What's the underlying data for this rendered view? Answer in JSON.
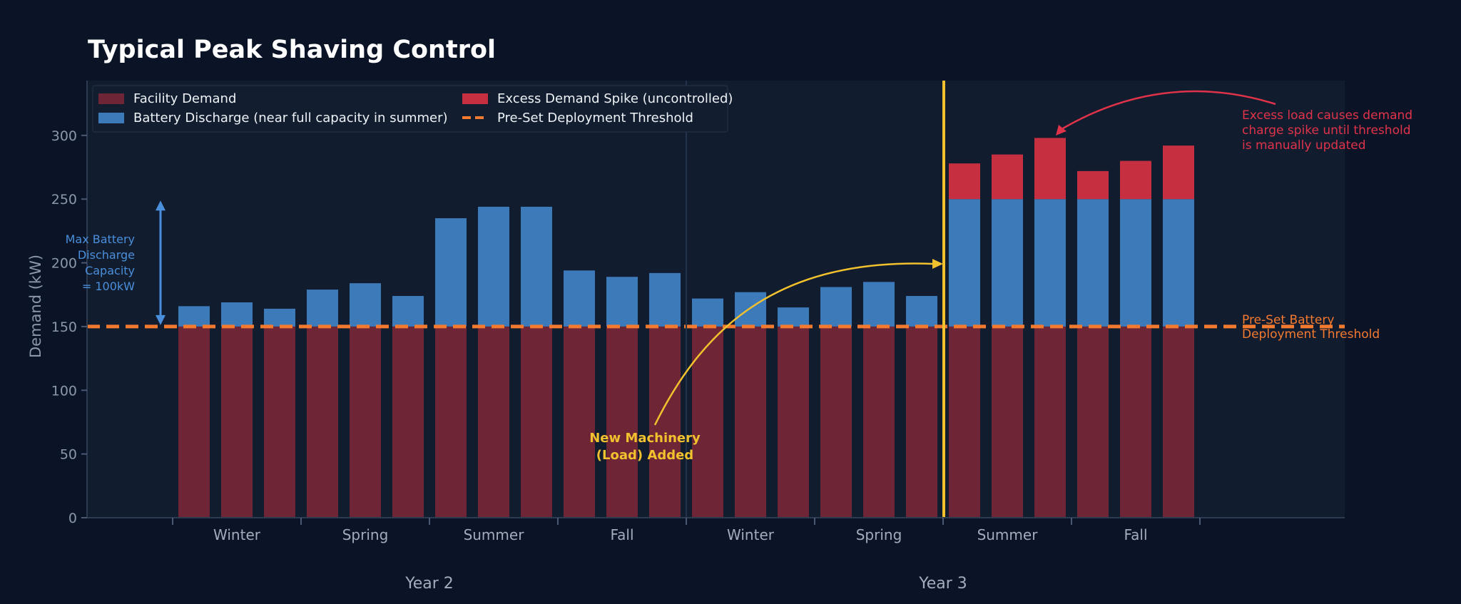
{
  "chart_data": {
    "type": "bar",
    "title": "Typical Peak Shaving Control",
    "ylabel": "Demand (kW)",
    "xlabel": "",
    "ylim": [
      0,
      343
    ],
    "yticks": [
      0,
      50,
      100,
      150,
      200,
      250,
      300
    ],
    "grid": false,
    "legend_position": "top-left",
    "threshold_kw": 150,
    "battery_cap_kw": 250,
    "seasons": [
      "Winter",
      "Spring",
      "Summer",
      "Fall",
      "Winter",
      "Spring",
      "Summer",
      "Fall"
    ],
    "years": [
      "Year 2",
      "Year 3"
    ],
    "series": [
      {
        "name": "Facility Demand",
        "color": "#6e2536",
        "values": [
          150,
          150,
          150,
          150,
          150,
          150,
          150,
          150,
          150,
          150,
          150,
          150,
          150,
          150,
          150,
          150,
          150,
          150,
          150,
          150,
          150,
          150,
          150,
          150
        ]
      },
      {
        "name": "Battery Discharge (near full capacity in summer)",
        "color": "#3d7ab9",
        "values": [
          16,
          19,
          14,
          29,
          34,
          24,
          85,
          94,
          94,
          44,
          39,
          42,
          22,
          27,
          15,
          31,
          35,
          24,
          100,
          100,
          100,
          100,
          100,
          100
        ]
      },
      {
        "name": "Excess Demand Spike (uncontrolled)",
        "color": "#c62f40",
        "values": [
          0,
          0,
          0,
          0,
          0,
          0,
          0,
          0,
          0,
          0,
          0,
          0,
          0,
          0,
          0,
          0,
          0,
          0,
          28,
          35,
          48,
          22,
          30,
          42
        ]
      },
      {
        "name": "Pre-Set Deployment Threshold",
        "color": "#f47a30",
        "type": "line-dashed",
        "values": [
          150
        ]
      }
    ],
    "annotations": {
      "battery_capacity": [
        "Max Battery",
        "Discharge",
        "Capacity",
        "= 100kW"
      ],
      "new_load": [
        "New Machinery",
        "(Load) Added"
      ],
      "excess": [
        "Excess load causes demand",
        "charge spike until threshold",
        "is manually updated"
      ],
      "threshold": [
        "Pre-Set Battery",
        "Deployment Threshold"
      ]
    }
  },
  "colors": {
    "background": "#0b1427",
    "plot_background": "#111c2e",
    "axis": "#2c3a52",
    "event_line": "#f2c12e"
  }
}
